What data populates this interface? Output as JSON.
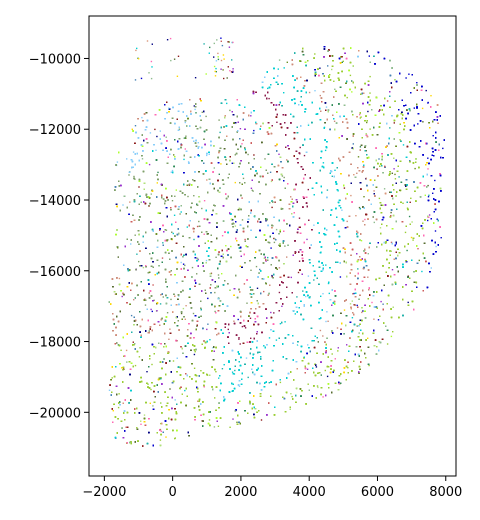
{
  "chart_data": {
    "type": "scatter",
    "title": "",
    "xlabel": "",
    "ylabel": "",
    "xlim": [
      -2450,
      8300
    ],
    "ylim": [
      -21800,
      -8800
    ],
    "xticks": [
      -2000,
      0,
      2000,
      4000,
      6000,
      8000
    ],
    "xtick_labels": [
      "−2000",
      "0",
      "2000",
      "4000",
      "6000",
      "8000"
    ],
    "yticks": [
      -10000,
      -12000,
      -14000,
      -16000,
      -18000,
      -20000
    ],
    "ytick_labels": [
      "−10000",
      "−12000",
      "−14000",
      "−16000",
      "−18000",
      "−20000"
    ],
    "grid": false,
    "legend": "none",
    "point_colors": [
      "#8fbc8f",
      "#d9967a",
      "#b0e07a",
      "#2e8b57",
      "#6b8e23",
      "#20b2aa",
      "#87cefa",
      "#ff69b4",
      "#9932cc",
      "#8b1a1a",
      "#00ced1",
      "#adff2f",
      "#4682b4",
      "#ffd700",
      "#0000cd",
      "#556b2f",
      "#cd5c5c",
      "#000080"
    ],
    "region_colors": {
      "outer_rim": "#0000cd",
      "cortex": "#9acd32",
      "inner_cortex": "#cd8c7a",
      "hippocampus_band": "#00ced1",
      "dentate_arc": "#8b1a4a",
      "thalamus": "#7fa06a",
      "fiber_tract": "#87cefa"
    },
    "series_note": "dense spatial scatter of cell centroids colored by cluster"
  }
}
